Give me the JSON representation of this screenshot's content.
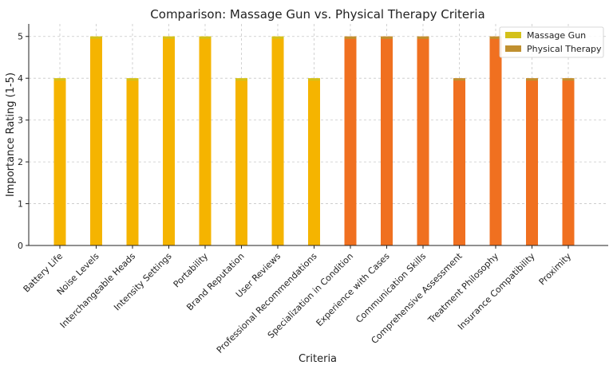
{
  "chart_data": {
    "type": "bar",
    "title": "Comparison: Massage Gun vs. Physical Therapy Criteria",
    "xlabel": "Criteria",
    "ylabel": "Importance Rating (1-5)",
    "ylim": [
      0,
      5.3
    ],
    "yticks": [
      0,
      1,
      2,
      3,
      4,
      5
    ],
    "grid": true,
    "legend_position": "top-right",
    "categories": [
      "Battery Life",
      "Noise Levels",
      "Interchangeable Heads",
      "Intensity Settings",
      "Portability",
      "Brand Reputation",
      "User Reviews",
      "Professional Recommendations",
      "Specialization in Condition",
      "Experience with Cases",
      "Communication Skills",
      "Comprehensive Assessment",
      "Treatment Philosophy",
      "Insurance Compatibility",
      "Proximity"
    ],
    "series": [
      {
        "name": "Massage Gun",
        "color": "#f5b400",
        "legend_color": "#d4c11a",
        "values": [
          4,
          5,
          4,
          5,
          5,
          4,
          5,
          4,
          null,
          null,
          null,
          null,
          null,
          null,
          null
        ]
      },
      {
        "name": "Physical Therapy",
        "color": "#f07020",
        "legend_color": "#c09030",
        "values": [
          null,
          null,
          null,
          null,
          null,
          null,
          null,
          null,
          5,
          5,
          5,
          4,
          5,
          4,
          4
        ]
      }
    ]
  }
}
